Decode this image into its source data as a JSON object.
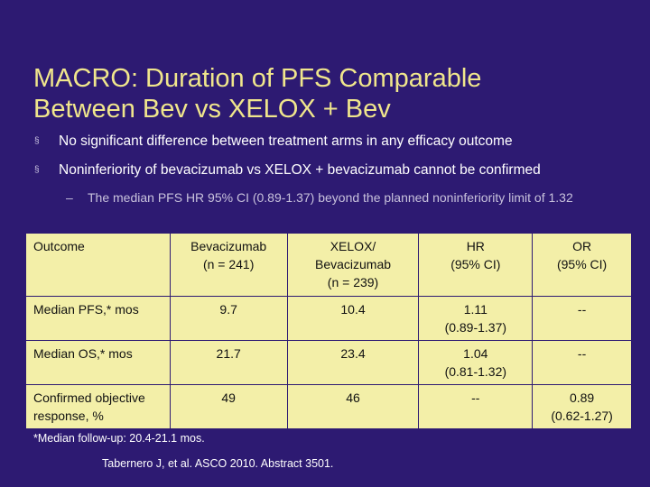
{
  "slide": {
    "title_line1": "MACRO: Duration of PFS Comparable",
    "title_line2": "Between Bev vs XELOX + Bev",
    "bullets": [
      "No significant difference between treatment arms in any efficacy outcome",
      "Noninferiority of bevacizumab vs XELOX + bevacizumab cannot be confirmed"
    ],
    "bullet_marker": "§",
    "sub_marker": "–",
    "sub_bullet": "The median PFS HR 95% CI (0.89-1.37) beyond the planned noninferiority limit of 1.32"
  },
  "table": {
    "header": {
      "outcome": "Outcome",
      "bev_line1": "Bevacizumab",
      "bev_line2": "(n = 241)",
      "xelox_line1": "XELOX/",
      "xelox_line2": "Bevacizumab",
      "xelox_line3": "(n = 239)",
      "hr_line1": "HR",
      "hr_line2": "(95% CI)",
      "or_line1": "OR",
      "or_line2": "(95% CI)"
    },
    "rows": [
      {
        "outcome": "Median PFS,* mos",
        "bev": "9.7",
        "xelox": "10.4",
        "hr": "1.11",
        "hr_ci": "(0.89-1.37)",
        "or": "--",
        "or_ci": ""
      },
      {
        "outcome": "Median OS,* mos",
        "bev": "21.7",
        "xelox": "23.4",
        "hr": "1.04",
        "hr_ci": "(0.81-1.32)",
        "or": "--",
        "or_ci": ""
      },
      {
        "outcome": "Confirmed objective response, %",
        "bev": "49",
        "xelox": "46",
        "hr": "--",
        "hr_ci": "",
        "or": "0.89",
        "or_ci": "(0.62-1.27)"
      }
    ]
  },
  "footnote": "*Median follow-up: 20.4-21.1 mos.",
  "reference": "Tabernero J, et al. ASCO 2010. Abstract 3501.",
  "colors": {
    "background": "#2d1a72",
    "title": "#f0e68c",
    "table_fill": "#f3efa8"
  }
}
